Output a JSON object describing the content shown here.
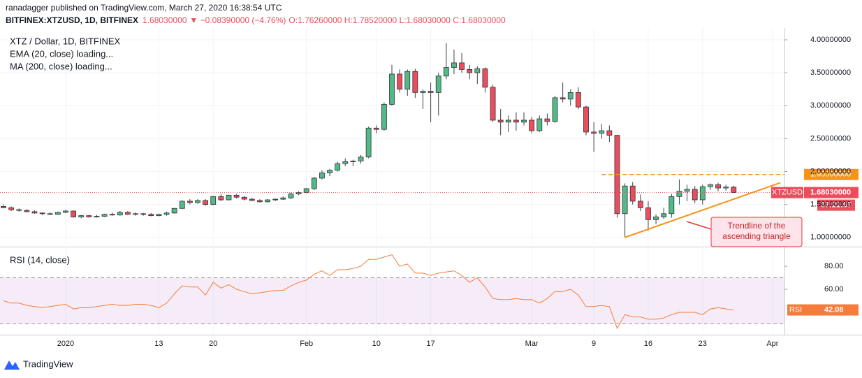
{
  "header": {
    "published": "ranadagger published on TradingView.com, March 27, 2020 16:38:54 UTC",
    "symbol": "BITFINEX:XTZUSD, 1D, BITFINEX",
    "last": "1.68030000",
    "change": "▼ −0.08390000 (−4.76%)",
    "ohlc": "O:1.76260000 H:1.78520000 L:1.68030000 C:1.68030000"
  },
  "logo": "TradingView",
  "chart_data": {
    "type": "candlestick",
    "title": "XTZ / Dollar, 1D, BITFINEX",
    "indicators": [
      "EMA (20, close) loading...",
      "MA (200, close) loading..."
    ],
    "categories": [
      null,
      null,
      null,
      null,
      null,
      null,
      null,
      null,
      "2020",
      null,
      null,
      null,
      null,
      null,
      null,
      null,
      null,
      null,
      null,
      null,
      "13",
      null,
      null,
      null,
      null,
      null,
      null,
      "20",
      null,
      null,
      null,
      null,
      null,
      null,
      null,
      null,
      null,
      null,
      null,
      "Feb",
      null,
      null,
      null,
      null,
      null,
      null,
      null,
      null,
      "10",
      null,
      null,
      null,
      null,
      null,
      null,
      "17",
      null,
      null,
      null,
      null,
      null,
      null,
      null,
      null,
      null,
      null,
      null,
      null,
      "Mar",
      null,
      null,
      null,
      null,
      null,
      null,
      null,
      "9",
      null,
      null,
      null,
      null,
      null,
      null,
      "16",
      null,
      null,
      null,
      null,
      null,
      null,
      "23",
      null,
      null,
      null,
      null,
      null,
      null,
      null,
      null,
      "Apr",
      null
    ],
    "open": [
      1.47,
      1.45,
      1.42,
      1.41,
      1.39,
      1.37,
      1.36,
      1.35,
      1.38,
      1.4,
      1.31,
      1.33,
      1.31,
      1.32,
      1.35,
      1.34,
      1.38,
      1.35,
      1.36,
      1.35,
      1.33,
      1.35,
      1.37,
      1.44,
      1.55,
      1.53,
      1.56,
      1.5,
      1.62,
      1.57,
      1.64,
      1.61,
      1.58,
      1.56,
      1.54,
      1.57,
      1.58,
      1.6,
      1.66,
      1.68,
      1.74,
      1.9,
      1.98,
      2.02,
      2.12,
      2.15,
      2.16,
      2.22,
      2.66,
      2.64,
      3.02,
      3.48,
      3.25,
      3.52,
      3.2,
      3.22,
      3.2,
      3.45,
      3.58,
      3.65,
      3.55,
      3.5,
      3.56,
      3.28,
      2.78,
      2.75,
      2.78,
      2.75,
      2.78,
      2.62,
      2.8,
      2.76,
      3.12,
      3.1,
      3.2,
      2.98,
      2.6,
      2.58,
      2.62,
      2.55,
      1.36,
      1.78,
      1.55,
      1.45,
      1.27,
      1.31,
      1.36,
      1.62,
      1.7,
      1.73,
      1.57,
      1.77,
      1.8,
      1.75,
      1.7626,
      null,
      null,
      null,
      null,
      null,
      null
    ],
    "high": [
      1.5,
      1.47,
      1.44,
      1.43,
      1.41,
      1.38,
      1.38,
      1.39,
      1.42,
      1.41,
      1.34,
      1.34,
      1.34,
      1.36,
      1.38,
      1.4,
      1.4,
      1.38,
      1.37,
      1.37,
      1.36,
      1.39,
      1.45,
      1.56,
      1.58,
      1.58,
      1.58,
      1.63,
      1.66,
      1.65,
      1.66,
      1.63,
      1.6,
      1.58,
      1.58,
      1.59,
      1.62,
      1.68,
      1.7,
      1.75,
      1.92,
      2.02,
      2.04,
      2.15,
      2.2,
      2.18,
      2.25,
      2.68,
      2.7,
      3.05,
      3.62,
      3.55,
      3.55,
      3.56,
      3.25,
      3.35,
      3.5,
      3.95,
      3.85,
      3.8,
      3.62,
      3.6,
      3.58,
      3.32,
      2.95,
      2.85,
      2.9,
      2.9,
      2.83,
      2.85,
      2.88,
      3.15,
      3.35,
      3.25,
      3.28,
      3.0,
      2.75,
      2.72,
      2.7,
      2.56,
      1.82,
      1.84,
      1.65,
      1.55,
      1.35,
      1.45,
      1.66,
      1.88,
      1.8,
      1.78,
      1.8,
      1.82,
      1.83,
      1.8,
      1.7852,
      null,
      null,
      null,
      null,
      null,
      null
    ],
    "low": [
      1.44,
      1.4,
      1.39,
      1.38,
      1.36,
      1.34,
      1.34,
      1.34,
      1.37,
      1.3,
      1.29,
      1.3,
      1.3,
      1.31,
      1.33,
      1.33,
      1.34,
      1.33,
      1.33,
      1.32,
      1.32,
      1.33,
      1.36,
      1.43,
      1.5,
      1.51,
      1.48,
      1.49,
      1.55,
      1.56,
      1.59,
      1.56,
      1.55,
      1.53,
      1.53,
      1.55,
      1.57,
      1.58,
      1.64,
      1.67,
      1.72,
      1.88,
      1.93,
      2.0,
      2.08,
      2.08,
      2.12,
      2.2,
      2.58,
      2.62,
      3.0,
      3.2,
      3.15,
      3.12,
      2.95,
      2.75,
      2.85,
      3.4,
      3.48,
      3.5,
      3.4,
      3.33,
      3.2,
      2.75,
      2.55,
      2.6,
      2.62,
      2.7,
      2.58,
      2.6,
      2.7,
      2.74,
      3.05,
      3.0,
      2.95,
      2.55,
      2.3,
      2.5,
      2.45,
      1.3,
      1.0,
      1.5,
      1.4,
      1.1,
      1.2,
      1.28,
      1.3,
      1.5,
      1.55,
      1.52,
      1.5,
      1.72,
      1.7,
      1.71,
      1.6803,
      null,
      null,
      null,
      null,
      null,
      null
    ],
    "close": [
      1.45,
      1.42,
      1.41,
      1.39,
      1.37,
      1.36,
      1.35,
      1.38,
      1.4,
      1.31,
      1.33,
      1.31,
      1.32,
      1.35,
      1.34,
      1.38,
      1.35,
      1.36,
      1.35,
      1.33,
      1.35,
      1.37,
      1.44,
      1.55,
      1.53,
      1.56,
      1.5,
      1.62,
      1.57,
      1.64,
      1.61,
      1.58,
      1.56,
      1.54,
      1.57,
      1.58,
      1.6,
      1.66,
      1.68,
      1.74,
      1.9,
      1.98,
      2.02,
      2.12,
      2.15,
      2.16,
      2.22,
      2.66,
      2.64,
      3.02,
      3.48,
      3.25,
      3.52,
      3.2,
      3.22,
      3.2,
      3.45,
      3.58,
      3.65,
      3.55,
      3.5,
      3.56,
      3.28,
      2.78,
      2.75,
      2.78,
      2.75,
      2.78,
      2.62,
      2.8,
      2.76,
      3.12,
      3.1,
      3.2,
      2.98,
      2.6,
      2.58,
      2.62,
      2.55,
      1.36,
      1.78,
      1.55,
      1.45,
      1.27,
      1.31,
      1.36,
      1.62,
      1.7,
      1.73,
      1.57,
      1.77,
      1.8,
      1.75,
      1.7626,
      1.6803,
      null,
      null,
      null,
      null,
      null,
      null
    ],
    "up_color": "#53b987",
    "down_color": "#eb4d5c",
    "ylim": [
      0.87,
      4.18
    ],
    "yticks": [
      {
        "value": 1,
        "label": "1.00000000"
      },
      {
        "value": 1.5,
        "label": "1.50000000"
      },
      {
        "value": 2,
        "label": "2.00000000"
      },
      {
        "value": 2.5,
        "label": "2.50000000"
      },
      {
        "value": 3,
        "label": "3.00000000"
      },
      {
        "value": 3.5,
        "label": "3.50000000"
      },
      {
        "value": 4,
        "label": "4.00000000"
      }
    ],
    "grid": true,
    "last_price": {
      "name": "XTZUSD",
      "value": 1.6803,
      "label": "1.68030000",
      "countdown": "07:21:07",
      "color": "#eb4d5c"
    },
    "level": {
      "value": 1.955,
      "label": "1.95500000",
      "x_start": 77,
      "color": "#f7931a"
    },
    "trendline": {
      "x": [
        80,
        100
      ],
      "values": [
        1.0,
        1.83
      ],
      "color": "#f7931a"
    },
    "annotation": {
      "lines": [
        "Trendline of the",
        "ascending triangle"
      ],
      "color": "#e53935"
    },
    "rsi": {
      "title": "RSI (14, close)",
      "name": "RSI",
      "color": "#f57c3a",
      "values": [
        50,
        48,
        48,
        46,
        45,
        44,
        45,
        46,
        47,
        43,
        44,
        44,
        45,
        46,
        47,
        46,
        46,
        47,
        47,
        46,
        44,
        48,
        56,
        63,
        62,
        62,
        55,
        66,
        61,
        64,
        60,
        58,
        56,
        57,
        58,
        59,
        59,
        63,
        66,
        68,
        73,
        76,
        72,
        77,
        77,
        78,
        80,
        86,
        86,
        88,
        90,
        80,
        82,
        74,
        74,
        72,
        74,
        75,
        76,
        72,
        66,
        70,
        62,
        52,
        51,
        51,
        52,
        51,
        51,
        48,
        52,
        58,
        58,
        60,
        55,
        45,
        45,
        46,
        45,
        26,
        38,
        36,
        36,
        34,
        34,
        35,
        38,
        40,
        40,
        40,
        38,
        43,
        44,
        43,
        42.08,
        null,
        null,
        null,
        null,
        null,
        null
      ],
      "last_label": "42.08",
      "ylim": [
        21.2,
        95.8
      ],
      "yticks": [
        {
          "value": 60,
          "label": "60.00"
        },
        {
          "value": 80,
          "label": "80.00"
        }
      ],
      "band": [
        30,
        70
      ],
      "band_color": "#9c27b0"
    }
  }
}
